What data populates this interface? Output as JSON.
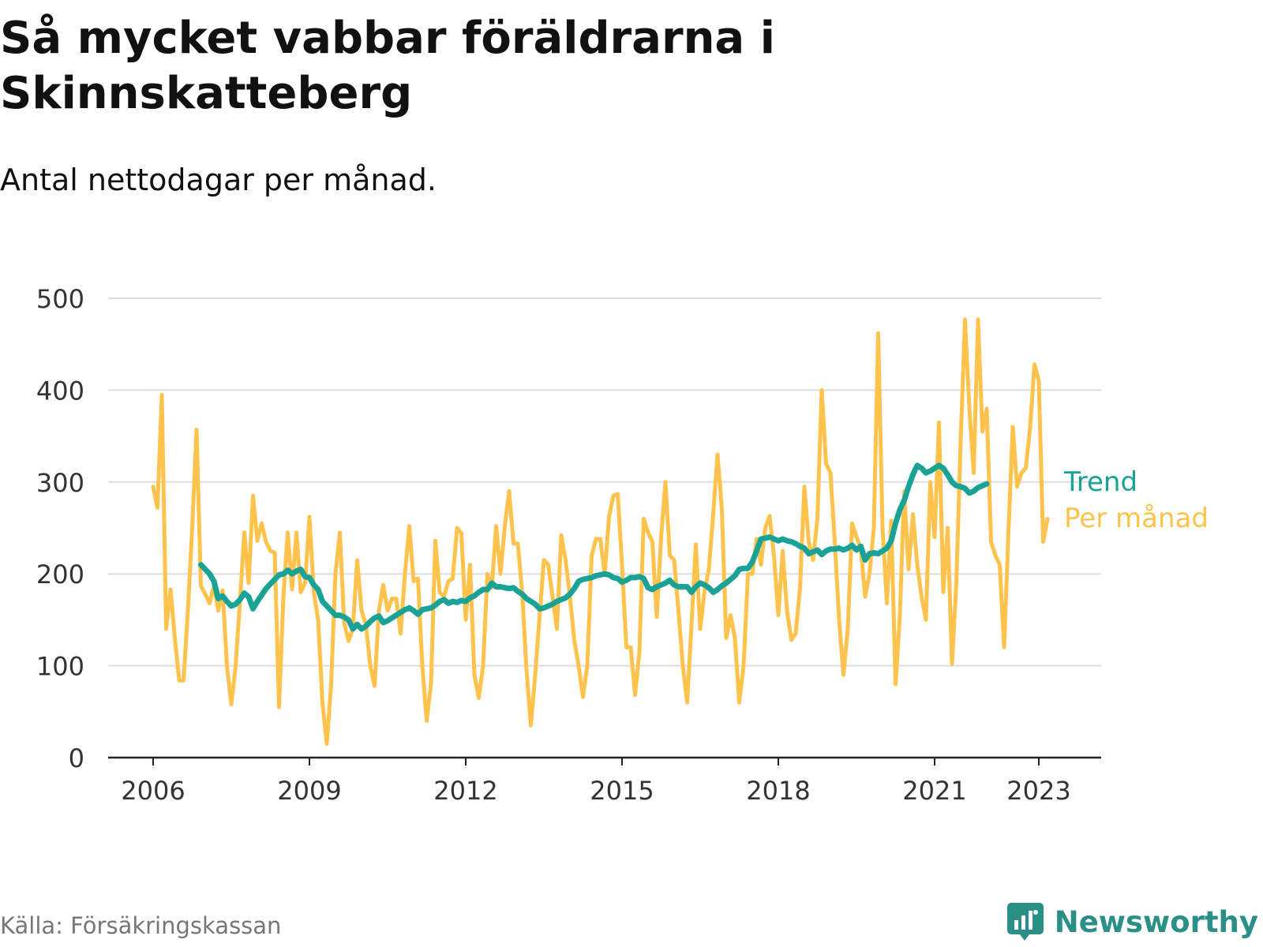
{
  "title": "Så mycket vabbar föräldrarna i Skinnskatteberg",
  "subtitle": "Antal nettodagar per månad.",
  "source": "Källa: Försäkringskassan",
  "brand": "Newsworthy",
  "colors": {
    "monthly": "#ffc34d",
    "trend": "#1aa296",
    "grid": "#dddddd",
    "axis": "#222222",
    "brand": "#2a8f86"
  },
  "chart_data": {
    "type": "line",
    "ylim": [
      0,
      500
    ],
    "yticks": [
      0,
      100,
      200,
      300,
      400,
      500
    ],
    "xlim": [
      "2006-01",
      "2023-12"
    ],
    "xticks": [
      {
        "date": "2006-01",
        "label": "2006"
      },
      {
        "date": "2009-01",
        "label": "2009"
      },
      {
        "date": "2012-01",
        "label": "2012"
      },
      {
        "date": "2015-01",
        "label": "2015"
      },
      {
        "date": "2018-01",
        "label": "2018"
      },
      {
        "date": "2021-01",
        "label": "2021"
      },
      {
        "date": "2023-01",
        "label": "2023"
      }
    ],
    "grid": true,
    "legend": "inline-right",
    "series": [
      {
        "name": "Per månad",
        "start": "2006-01",
        "values": [
          295,
          272,
          395,
          140,
          183,
          130,
          84,
          84,
          160,
          250,
          357,
          187,
          178,
          168,
          187,
          160,
          182,
          100,
          58,
          100,
          170,
          245,
          190,
          285,
          236,
          255,
          235,
          225,
          223,
          55,
          175,
          245,
          183,
          245,
          180,
          190,
          262,
          180,
          150,
          60,
          15,
          80,
          200,
          245,
          147,
          127,
          140,
          215,
          160,
          145,
          100,
          78,
          160,
          188,
          160,
          173,
          173,
          135,
          200,
          252,
          192,
          195,
          100,
          40,
          80,
          236,
          180,
          175,
          192,
          195,
          250,
          244,
          150,
          210,
          90,
          65,
          100,
          200,
          185,
          252,
          200,
          252,
          290,
          233,
          233,
          180,
          95,
          35,
          90,
          153,
          215,
          210,
          175,
          140,
          242,
          215,
          175,
          128,
          100,
          66,
          100,
          220,
          238,
          238,
          200,
          262,
          285,
          287,
          210,
          120,
          120,
          68,
          115,
          260,
          245,
          235,
          153,
          240,
          300,
          220,
          215,
          160,
          100,
          60,
          145,
          232,
          140,
          181,
          205,
          265,
          330,
          270,
          130,
          155,
          130,
          60,
          100,
          200,
          200,
          238,
          210,
          250,
          263,
          220,
          155,
          225,
          160,
          128,
          135,
          185,
          295,
          235,
          215,
          260,
          400,
          320,
          310,
          235,
          150,
          90,
          140,
          255,
          240,
          228,
          175,
          200,
          250,
          462,
          250,
          168,
          258,
          80,
          155,
          290,
          205,
          265,
          210,
          175,
          150,
          300,
          240,
          365,
          180,
          250,
          102,
          190,
          345,
          477,
          380,
          310,
          477,
          355,
          380,
          235,
          220,
          210,
          120,
          245,
          360,
          295,
          310,
          315,
          360,
          428,
          410,
          235,
          260
        ]
      },
      {
        "name": "Trend",
        "start": "2006-12",
        "values": [
          210,
          205,
          200,
          192,
          173,
          176,
          170,
          165,
          167,
          172,
          179,
          175,
          162,
          170,
          177,
          184,
          189,
          194,
          199,
          200,
          204,
          200,
          203,
          205,
          197,
          196,
          188,
          183,
          170,
          165,
          160,
          155,
          155,
          153,
          150,
          140,
          145,
          140,
          143,
          148,
          152,
          154,
          147,
          149,
          152,
          155,
          158,
          161,
          163,
          160,
          156,
          161,
          162,
          163,
          166,
          170,
          172,
          168,
          170,
          169,
          171,
          170,
          174,
          176,
          180,
          183,
          183,
          190,
          186,
          186,
          185,
          184,
          185,
          181,
          178,
          173,
          170,
          167,
          162,
          163,
          165,
          167,
          170,
          172,
          174,
          178,
          184,
          192,
          194,
          195,
          196,
          198,
          199,
          200,
          199,
          196,
          195,
          191,
          193,
          196,
          196,
          197,
          195,
          185,
          183,
          186,
          188,
          190,
          193,
          188,
          186,
          186,
          186,
          180,
          186,
          190,
          188,
          185,
          180,
          183,
          187,
          190,
          194,
          198,
          205,
          206,
          206,
          213,
          225,
          238,
          239,
          240,
          238,
          236,
          238,
          236,
          235,
          233,
          230,
          228,
          222,
          224,
          226,
          221,
          225,
          227,
          227,
          228,
          226,
          228,
          231,
          226,
          230,
          215,
          222,
          223,
          222,
          225,
          228,
          236,
          255,
          270,
          280,
          295,
          308,
          318,
          315,
          310,
          312,
          315,
          318,
          315,
          308,
          300,
          296,
          295,
          293,
          288,
          290,
          294,
          296,
          298
        ]
      }
    ]
  }
}
